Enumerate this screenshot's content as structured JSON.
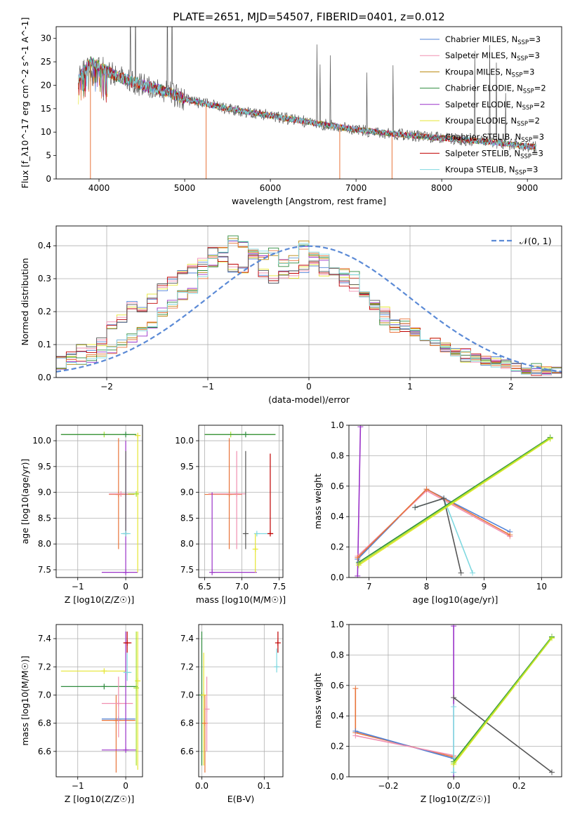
{
  "title": "PLATE=2651, MJD=54507, FIBERID=0401, z=0.012",
  "colors": {
    "Chabrier MILES": "#4f81d6",
    "Salpeter MILES": "#f08fb0",
    "Kroupa MILES": "#b8860b",
    "Chabrier ELODIE": "#2e8b3e",
    "Salpeter ELODIE": "#9a32c8",
    "Kroupa ELODIE": "#e6e632",
    "Chabrier STELIB": "#555555",
    "Salpeter STELIB": "#c00000",
    "Kroupa STELIB": "#7fd8e0",
    "orange": "#e8743a",
    "lime": "#a6e22e",
    "gaussian": "#5b8ad6"
  },
  "chart_data": [
    {
      "type": "line",
      "xlabel": "wavelength [Angstrom, rest frame]",
      "ylabel": "Flux [f_λ10^-17 erg cm^-2 s^-1 A^-1]",
      "xlim": [
        3500,
        9400
      ],
      "ylim": [
        0,
        32.5
      ],
      "xticks": [
        4000,
        5000,
        6000,
        7000,
        8000,
        9000
      ],
      "yticks": [
        0,
        5,
        10,
        15,
        20,
        25,
        30
      ],
      "legend_position": "top-right",
      "legend": [
        {
          "name": "Chabrier MILES",
          "sub": "N",
          "subscript": "SSP",
          "n": "=3"
        },
        {
          "name": "Salpeter MILES",
          "sub": "N",
          "subscript": "SSP",
          "n": "=3"
        },
        {
          "name": "Kroupa MILES",
          "sub": "N",
          "subscript": "SSP",
          "n": "=3"
        },
        {
          "name": "Chabrier ELODIE",
          "sub": "N",
          "subscript": "SSP",
          "n": "=2"
        },
        {
          "name": "Salpeter ELODIE",
          "sub": "N",
          "subscript": "SSP",
          "n": "=2"
        },
        {
          "name": "Kroupa ELODIE",
          "sub": "N",
          "subscript": "SSP",
          "n": "=2"
        },
        {
          "name": "Chabrier STELIB",
          "sub": "N",
          "subscript": "SSP",
          "n": "=3"
        },
        {
          "name": "Salpeter STELIB",
          "sub": "N",
          "subscript": "SSP",
          "n": "=3"
        },
        {
          "name": "Kroupa STELIB",
          "sub": "N",
          "subscript": "SSP",
          "n": "=3"
        }
      ],
      "continuum": [
        [
          3750,
          21
        ],
        [
          3900,
          25
        ],
        [
          4000,
          24
        ],
        [
          4200,
          22
        ],
        [
          4500,
          20
        ],
        [
          4800,
          18.5
        ],
        [
          5000,
          17
        ],
        [
          5500,
          15
        ],
        [
          6000,
          13.5
        ],
        [
          6500,
          12
        ],
        [
          7000,
          10.5
        ],
        [
          7500,
          9.5
        ],
        [
          8000,
          8.7
        ],
        [
          8500,
          8.0
        ],
        [
          9100,
          6.8
        ]
      ],
      "end_spike_lambda": [
        3900,
        5250,
        6810,
        7420
      ]
    },
    {
      "type": "step",
      "xlabel": "(data-model)/error",
      "ylabel": "Normed distribution",
      "xlim": [
        -2.5,
        2.5
      ],
      "ylim": [
        0,
        0.46
      ],
      "xticks": [
        -2,
        -1,
        0,
        1,
        2
      ],
      "yticks": [
        0.0,
        0.1,
        0.2,
        0.3,
        0.4
      ],
      "gaussian_label": "𝒩(0, 1)",
      "bin_width": 0.1,
      "bins_start": -2.5,
      "profiles": [
        [
          0.06,
          0.07,
          0.09,
          0.09,
          0.11,
          0.16,
          0.18,
          0.22,
          0.21,
          0.24,
          0.27,
          0.29,
          0.32,
          0.33,
          0.35,
          0.38,
          0.36,
          0.33,
          0.33,
          0.36,
          0.32,
          0.3,
          0.31,
          0.31,
          0.33,
          0.34,
          0.32,
          0.32,
          0.29,
          0.27,
          0.24,
          0.22,
          0.2,
          0.16,
          0.15,
          0.14,
          0.11,
          0.11,
          0.09,
          0.08,
          0.06,
          0.06,
          0.05,
          0.05,
          0.04,
          0.03,
          0.03,
          0.02,
          0.02,
          0.02
        ],
        [
          0.04,
          0.05,
          0.05,
          0.06,
          0.07,
          0.08,
          0.1,
          0.12,
          0.14,
          0.16,
          0.2,
          0.22,
          0.25,
          0.27,
          0.31,
          0.35,
          0.38,
          0.42,
          0.4,
          0.39,
          0.37,
          0.38,
          0.35,
          0.36,
          0.4,
          0.38,
          0.37,
          0.34,
          0.32,
          0.31,
          0.26,
          0.22,
          0.17,
          0.15,
          0.17,
          0.14,
          0.11,
          0.11,
          0.09,
          0.07,
          0.08,
          0.06,
          0.05,
          0.04,
          0.04,
          0.03,
          0.02,
          0.03,
          0.02,
          0.02
        ]
      ]
    },
    {
      "type": "errorbar",
      "xlabel": "Z [log10(Z/Z☉)]",
      "ylabel": "age  [log10(age/yr)]",
      "xlim": [
        -1.45,
        0.35
      ],
      "ylim": [
        7.35,
        10.3
      ],
      "xticks": [
        -1,
        0
      ],
      "yticks": [
        7.5,
        8.0,
        8.5,
        9.0,
        9.5,
        10.0
      ],
      "points": [
        {
          "c": "lime",
          "x": -0.45,
          "y": 10.12,
          "xe": [
            -1.35,
            0.22
          ]
        },
        {
          "c": "Chabrier ELODIE",
          "x": 0.0,
          "y": 10.12,
          "xe": [
            -1.35,
            0.22
          ]
        },
        {
          "c": "orange",
          "x": -0.15,
          "y": 8.96,
          "ye": [
            7.9,
            10.05
          ],
          "xe": [
            -0.35,
            0.18
          ]
        },
        {
          "c": "Salpeter MILES",
          "x": -0.1,
          "y": 8.97,
          "xe": [
            -0.35,
            0.2
          ]
        },
        {
          "c": "Salpeter ELODIE",
          "x": 0.0,
          "y": 7.45,
          "xe": [
            -0.5,
            0.25
          ],
          "ye": [
            7.45,
            10.0
          ]
        },
        {
          "c": "Chabrier STELIB",
          "x": 0.0,
          "y": 8.2,
          "ye": [
            8.2,
            9.8
          ]
        },
        {
          "c": "Kroupa STELIB",
          "x": 0.0,
          "y": 8.2,
          "xe": [
            -0.1,
            0.1
          ]
        },
        {
          "c": "Kroupa ELODIE",
          "x": 0.25,
          "y": 10.1,
          "ye": [
            7.45,
            10.1
          ]
        },
        {
          "c": "lime",
          "x": 0.22,
          "y": 8.97,
          "xe": [
            0.05,
            0.25
          ]
        }
      ]
    },
    {
      "type": "errorbar",
      "xlabel": "mass [log10(M/M☉)]",
      "ylabel": "",
      "xlim": [
        6.42,
        7.55
      ],
      "ylim": [
        7.35,
        10.3
      ],
      "xticks": [
        6.5,
        7.0,
        7.5
      ],
      "yticks": [
        7.5,
        8.0,
        8.5,
        9.0,
        9.5,
        10.0
      ],
      "points": [
        {
          "c": "lime",
          "x": 6.85,
          "y": 10.12,
          "xe": [
            6.5,
            7.45
          ]
        },
        {
          "c": "Chabrier ELODIE",
          "x": 7.05,
          "y": 10.12,
          "xe": [
            6.5,
            7.45
          ]
        },
        {
          "c": "orange",
          "x": 6.83,
          "y": 8.96,
          "ye": [
            7.9,
            10.05
          ],
          "xe": [
            6.5,
            7.0
          ]
        },
        {
          "c": "Salpeter MILES",
          "x": 6.93,
          "y": 8.97,
          "ye": [
            7.9,
            9.8
          ],
          "xe": [
            6.55,
            7.05
          ]
        },
        {
          "c": "Salpeter ELODIE",
          "x": 6.6,
          "y": 7.45,
          "xe": [
            6.6,
            7.2
          ],
          "ye": [
            7.45,
            9.0
          ]
        },
        {
          "c": "Chabrier STELIB",
          "x": 7.05,
          "y": 8.2,
          "ye": [
            7.9,
            9.8
          ]
        },
        {
          "c": "Kroupa STELIB",
          "x": 7.2,
          "y": 8.2,
          "xe": [
            7.18,
            7.38
          ]
        },
        {
          "c": "Kroupa ELODIE",
          "x": 7.18,
          "y": 7.9,
          "ye": [
            7.45,
            8.2
          ]
        },
        {
          "c": "Salpeter STELIB",
          "x": 7.38,
          "y": 8.2,
          "ye": [
            8.2,
            9.75
          ],
          "xe": [
            7.35,
            7.42
          ]
        }
      ]
    },
    {
      "type": "line",
      "xlabel": "age  [log10(age/yr)]",
      "ylabel": "mass weight",
      "xlim": [
        6.65,
        10.35
      ],
      "ylim": [
        0,
        1.0
      ],
      "xticks": [
        7,
        8,
        9,
        10
      ],
      "yticks": [
        0.0,
        0.2,
        0.4,
        0.6,
        0.8,
        1.0
      ],
      "series": [
        {
          "c": "Salpeter ELODIE",
          "pts": [
            [
              6.8,
              0.01
            ],
            [
              6.85,
              0.99
            ]
          ]
        },
        {
          "c": "Chabrier MILES",
          "pts": [
            [
              6.8,
              0.12
            ],
            [
              8.0,
              0.58
            ],
            [
              9.45,
              0.3
            ]
          ]
        },
        {
          "c": "Salpeter MILES",
          "pts": [
            [
              6.8,
              0.14
            ],
            [
              8.0,
              0.57
            ],
            [
              9.45,
              0.27
            ]
          ]
        },
        {
          "c": "orange",
          "pts": [
            [
              6.8,
              0.13
            ],
            [
              8.0,
              0.58
            ],
            [
              9.45,
              0.28
            ]
          ]
        },
        {
          "c": "Kroupa STELIB",
          "pts": [
            [
              7.8,
              0.46
            ],
            [
              8.3,
              0.52
            ],
            [
              8.8,
              0.03
            ]
          ]
        },
        {
          "c": "Chabrier STELIB",
          "pts": [
            [
              7.8,
              0.46
            ],
            [
              8.3,
              0.52
            ],
            [
              8.6,
              0.03
            ]
          ]
        },
        {
          "c": "Chabrier ELODIE",
          "pts": [
            [
              6.82,
              0.1
            ],
            [
              10.15,
              0.92
            ]
          ]
        },
        {
          "c": "Kroupa ELODIE",
          "pts": [
            [
              6.82,
              0.08
            ],
            [
              10.15,
              0.91
            ]
          ]
        },
        {
          "c": "lime",
          "pts": [
            [
              6.82,
              0.09
            ],
            [
              10.15,
              0.915
            ]
          ]
        }
      ]
    },
    {
      "type": "errorbar",
      "xlabel": "Z [log10(Z/Z☉)]",
      "ylabel": "mass [log10(M/M☉)]",
      "xlim": [
        -1.45,
        0.35
      ],
      "ylim": [
        6.42,
        7.5
      ],
      "xticks": [
        -1,
        0
      ],
      "yticks": [
        6.6,
        6.8,
        7.0,
        7.2,
        7.4
      ],
      "points": [
        {
          "c": "Kroupa ELODIE",
          "x": -0.45,
          "y": 7.17,
          "xe": [
            -1.35,
            0.0
          ]
        },
        {
          "c": "Chabrier ELODIE",
          "x": -0.45,
          "y": 7.06,
          "xe": [
            -1.35,
            0.25
          ]
        },
        {
          "c": "Chabrier MILES",
          "x": -0.15,
          "y": 6.83,
          "xe": [
            -0.5,
            0.2
          ]
        },
        {
          "c": "orange",
          "x": -0.2,
          "y": 6.82,
          "xe": [
            -0.5,
            0.2
          ],
          "ye": [
            6.45,
            7.0
          ]
        },
        {
          "c": "Salpeter MILES",
          "x": -0.15,
          "y": 6.94,
          "xe": [
            -0.5,
            0.15
          ],
          "ye": [
            6.7,
            7.13
          ]
        },
        {
          "c": "Salpeter ELODIE",
          "x": 0.0,
          "y": 6.61,
          "xe": [
            -0.5,
            0.22
          ],
          "ye": [
            6.61,
            7.45
          ]
        },
        {
          "c": "Salpeter STELIB",
          "x": 0.03,
          "y": 7.37,
          "xe": [
            -0.05,
            0.12
          ],
          "ye": [
            7.3,
            7.45
          ]
        },
        {
          "c": "Kroupa STELIB",
          "x": 0.03,
          "y": 7.16,
          "xe": [
            -0.05,
            0.12
          ],
          "ye": [
            7.1,
            7.3
          ]
        },
        {
          "c": "Kroupa ELODIE",
          "x": 0.25,
          "y": 7.1,
          "ye": [
            6.47,
            7.45
          ]
        },
        {
          "c": "lime",
          "x": 0.22,
          "y": 7.05,
          "ye": [
            6.5,
            7.45
          ]
        }
      ]
    },
    {
      "type": "errorbar",
      "xlabel": "E(B-V)",
      "ylabel": "",
      "xlim": [
        -0.005,
        0.13
      ],
      "ylim": [
        6.42,
        7.5
      ],
      "xticks": [
        0.0,
        0.1
      ],
      "yticks": [
        6.6,
        6.8,
        7.0,
        7.2,
        7.4
      ],
      "points": [
        {
          "c": "Chabrier ELODIE",
          "x": 0.0,
          "y": 7.0,
          "ye": [
            6.5,
            7.45
          ]
        },
        {
          "c": "Kroupa ELODIE",
          "x": 0.003,
          "y": 7.0,
          "ye": [
            6.5,
            7.3
          ]
        },
        {
          "c": "orange",
          "x": 0.005,
          "y": 6.8,
          "ye": [
            6.45,
            7.0
          ]
        },
        {
          "c": "Salpeter MILES",
          "x": 0.008,
          "y": 6.9,
          "ye": [
            6.6,
            7.13
          ]
        },
        {
          "c": "Salpeter STELIB",
          "x": 0.122,
          "y": 7.37,
          "ye": [
            7.3,
            7.45
          ]
        },
        {
          "c": "Kroupa STELIB",
          "x": 0.12,
          "y": 7.2,
          "ye": [
            7.16,
            7.33
          ]
        }
      ]
    },
    {
      "type": "line",
      "xlabel": "Z [log10(Z/Z☉)]",
      "ylabel": "mass weight",
      "xlim": [
        -0.32,
        0.33
      ],
      "ylim": [
        0,
        1.0
      ],
      "xticks": [
        -0.2,
        0.0,
        0.2
      ],
      "yticks": [
        0.0,
        0.2,
        0.4,
        0.6,
        0.8,
        1.0
      ],
      "series": [
        {
          "c": "Salpeter ELODIE",
          "pts": [
            [
              0.0,
              0.0
            ],
            [
              0.0,
              0.99
            ]
          ]
        },
        {
          "c": "orange",
          "pts": [
            [
              -0.3,
              0.58
            ],
            [
              -0.3,
              0.29
            ],
            [
              0.0,
              0.13
            ]
          ]
        },
        {
          "c": "Chabrier MILES",
          "pts": [
            [
              -0.3,
              0.3
            ],
            [
              0.0,
              0.12
            ]
          ]
        },
        {
          "c": "Salpeter MILES",
          "pts": [
            [
              -0.3,
              0.27
            ],
            [
              0.0,
              0.14
            ]
          ]
        },
        {
          "c": "Kroupa STELIB",
          "pts": [
            [
              0.0,
              0.46
            ],
            [
              0.0,
              0.03
            ]
          ]
        },
        {
          "c": "Chabrier STELIB",
          "pts": [
            [
              0.0,
              0.52
            ],
            [
              0.3,
              0.03
            ]
          ]
        },
        {
          "c": "Chabrier ELODIE",
          "pts": [
            [
              0.0,
              0.1
            ],
            [
              0.3,
              0.92
            ]
          ]
        },
        {
          "c": "Kroupa ELODIE",
          "pts": [
            [
              0.0,
              0.08
            ],
            [
              0.3,
              0.91
            ]
          ]
        },
        {
          "c": "lime",
          "pts": [
            [
              0.0,
              0.09
            ],
            [
              0.3,
              0.915
            ]
          ]
        }
      ]
    }
  ]
}
